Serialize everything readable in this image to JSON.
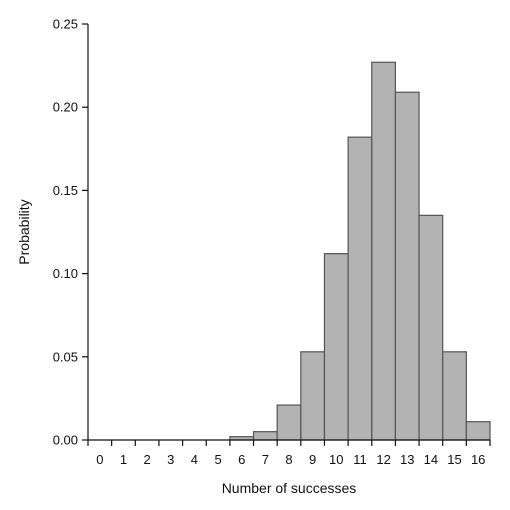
{
  "chart_data": {
    "type": "bar",
    "xlabel": "Number of successes",
    "ylabel": "Probability",
    "categories": [
      "0",
      "1",
      "2",
      "3",
      "4",
      "5",
      "6",
      "7",
      "8",
      "9",
      "10",
      "11",
      "12",
      "13",
      "14",
      "15",
      "16"
    ],
    "values": [
      0,
      0,
      0,
      0,
      0,
      0,
      0.002,
      0.005,
      0.021,
      0.053,
      0.112,
      0.182,
      0.227,
      0.209,
      0.135,
      0.053,
      0.011
    ],
    "ylim": [
      0,
      0.25
    ],
    "yticks": [
      0.0,
      0.05,
      0.1,
      0.15,
      0.2,
      0.25
    ],
    "ytick_labels": [
      "0.00",
      "0.05",
      "0.10",
      "0.15",
      "0.20",
      "0.25"
    ],
    "grid": false,
    "bar_color": "#b3b3b3",
    "bar_edge_color": "#555555"
  }
}
